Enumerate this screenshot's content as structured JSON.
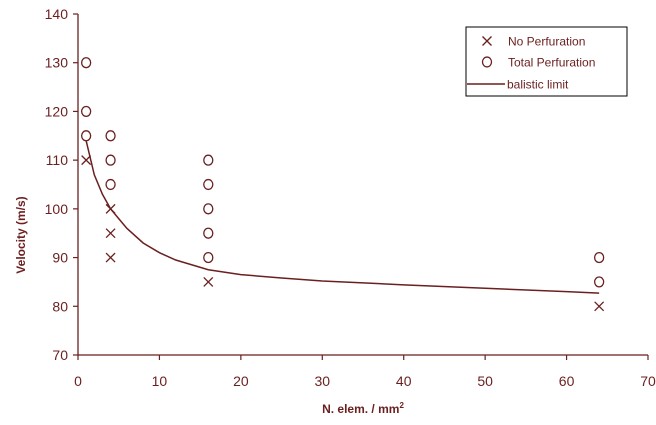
{
  "chart_data": {
    "type": "scatter",
    "xlabel": "N. elem. / mm",
    "xlabel_superscript": "2",
    "ylabel": "Velocity (m/s)",
    "xlim": [
      0,
      70
    ],
    "ylim": [
      70,
      140
    ],
    "x_ticks": [
      0,
      10,
      20,
      30,
      40,
      50,
      60,
      70
    ],
    "y_ticks": [
      70,
      80,
      90,
      100,
      110,
      120,
      130,
      140
    ],
    "grid": false,
    "legend_position": "top-right",
    "colors": {
      "axis": "#6b1f1f",
      "mark": "#6b1f1f"
    },
    "series": [
      {
        "name": "No Perfuration",
        "marker": "x",
        "points": [
          [
            1,
            110
          ],
          [
            4,
            100
          ],
          [
            4,
            95
          ],
          [
            4,
            90
          ],
          [
            16,
            85
          ],
          [
            64,
            80
          ]
        ]
      },
      {
        "name": "Total Perfuration",
        "marker": "circle",
        "points": [
          [
            1,
            130
          ],
          [
            1,
            120
          ],
          [
            1,
            115
          ],
          [
            4,
            115
          ],
          [
            4,
            110
          ],
          [
            4,
            105
          ],
          [
            16,
            110
          ],
          [
            16,
            105
          ],
          [
            16,
            100
          ],
          [
            16,
            95
          ],
          [
            16,
            90
          ],
          [
            64,
            90
          ],
          [
            64,
            85
          ]
        ]
      },
      {
        "name": "balistic limit",
        "marker": "line",
        "points": [
          [
            1,
            114
          ],
          [
            2,
            107
          ],
          [
            3,
            103
          ],
          [
            4,
            100
          ],
          [
            5,
            98
          ],
          [
            6,
            96
          ],
          [
            8,
            93
          ],
          [
            10,
            91
          ],
          [
            12,
            89.5
          ],
          [
            14,
            88.5
          ],
          [
            16,
            87.5
          ],
          [
            20,
            86.5
          ],
          [
            25,
            85.8
          ],
          [
            30,
            85.2
          ],
          [
            40,
            84.4
          ],
          [
            50,
            83.7
          ],
          [
            60,
            83
          ],
          [
            64,
            82.7
          ]
        ]
      }
    ]
  }
}
